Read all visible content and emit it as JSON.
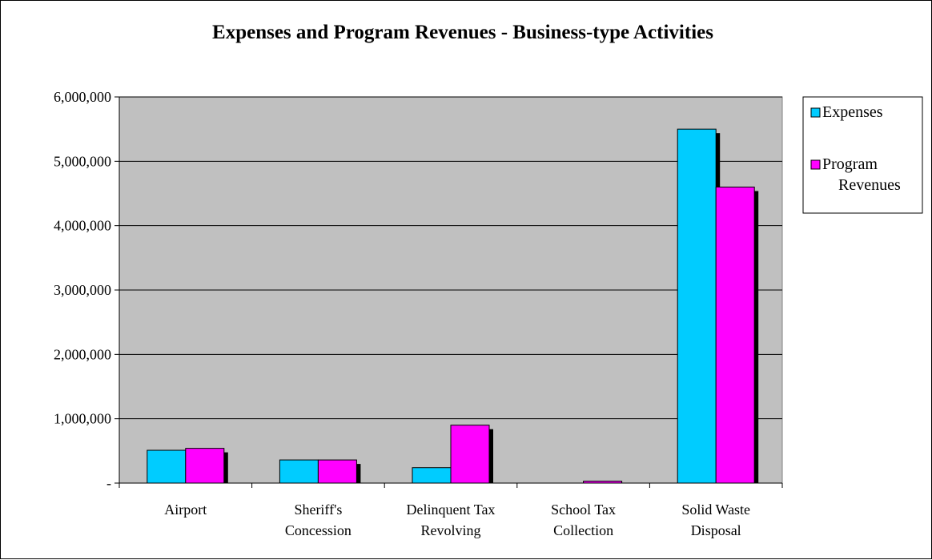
{
  "chart_data": {
    "type": "bar",
    "title": "Expenses and Program Revenues - Business-type Activities",
    "xlabel": "",
    "ylabel": "",
    "categories": [
      [
        "Airport"
      ],
      [
        "Sheriff's",
        "Concession"
      ],
      [
        "Delinquent Tax",
        "Revolving"
      ],
      [
        "School Tax",
        "Collection"
      ],
      [
        "Solid Waste",
        "Disposal"
      ]
    ],
    "series": [
      {
        "name": "Expenses",
        "color": "#00CCFF",
        "values": [
          510000,
          360000,
          240000,
          0,
          5500000
        ]
      },
      {
        "name": "Program Revenues",
        "color": "#FF00FF",
        "values": [
          540000,
          360000,
          900000,
          30000,
          4600000
        ]
      }
    ],
    "ylim": [
      0,
      6000000
    ],
    "yticks": [
      {
        "value": 0,
        "label": "-"
      },
      {
        "value": 1000000,
        "label": "1,000,000"
      },
      {
        "value": 2000000,
        "label": "2,000,000"
      },
      {
        "value": 3000000,
        "label": "3,000,000"
      },
      {
        "value": 4000000,
        "label": "4,000,000"
      },
      {
        "value": 5000000,
        "label": "5,000,000"
      },
      {
        "value": 6000000,
        "label": "6,000,000"
      }
    ],
    "grid": true,
    "plot_background": "#C0C0C0",
    "legend": {
      "position": "right",
      "entries": [
        {
          "lines": [
            "Expenses"
          ],
          "color": "#00CCFF"
        },
        {
          "lines": [
            "Program",
            "Revenues"
          ],
          "color": "#FF00FF"
        }
      ]
    }
  }
}
